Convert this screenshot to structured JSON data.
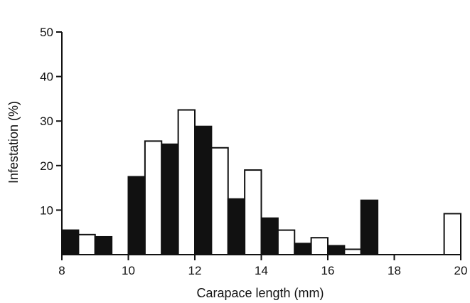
{
  "chart_data": {
    "type": "bar",
    "xlabel": "Carapace length (mm)",
    "ylabel": "Infestation (%)",
    "xlim": [
      8,
      20
    ],
    "ylim": [
      0,
      50
    ],
    "xticks": [
      "8",
      "10",
      "12",
      "14",
      "16",
      "18",
      "20"
    ],
    "yticks": [
      "10",
      "20",
      "30",
      "40",
      "50"
    ],
    "bin_width": 0.5,
    "fills": {
      "filled": "#111111",
      "open": "#ffffff"
    },
    "bars": [
      {
        "x": 8.0,
        "value": 5.5,
        "fill": "filled"
      },
      {
        "x": 8.5,
        "value": 4.5,
        "fill": "open"
      },
      {
        "x": 9.0,
        "value": 4.0,
        "fill": "filled"
      },
      {
        "x": 10.0,
        "value": 17.5,
        "fill": "filled"
      },
      {
        "x": 10.5,
        "value": 25.5,
        "fill": "open"
      },
      {
        "x": 11.0,
        "value": 24.8,
        "fill": "filled"
      },
      {
        "x": 11.5,
        "value": 32.5,
        "fill": "open"
      },
      {
        "x": 12.0,
        "value": 28.8,
        "fill": "filled"
      },
      {
        "x": 12.5,
        "value": 24.0,
        "fill": "open"
      },
      {
        "x": 13.0,
        "value": 12.5,
        "fill": "filled"
      },
      {
        "x": 13.5,
        "value": 19.0,
        "fill": "open"
      },
      {
        "x": 14.0,
        "value": 8.2,
        "fill": "filled"
      },
      {
        "x": 14.5,
        "value": 5.5,
        "fill": "open"
      },
      {
        "x": 15.0,
        "value": 2.5,
        "fill": "filled"
      },
      {
        "x": 15.5,
        "value": 3.8,
        "fill": "open"
      },
      {
        "x": 16.0,
        "value": 2.0,
        "fill": "filled"
      },
      {
        "x": 16.5,
        "value": 1.2,
        "fill": "open"
      },
      {
        "x": 17.0,
        "value": 12.2,
        "fill": "filled"
      },
      {
        "x": 19.5,
        "value": 9.2,
        "fill": "open"
      }
    ]
  }
}
